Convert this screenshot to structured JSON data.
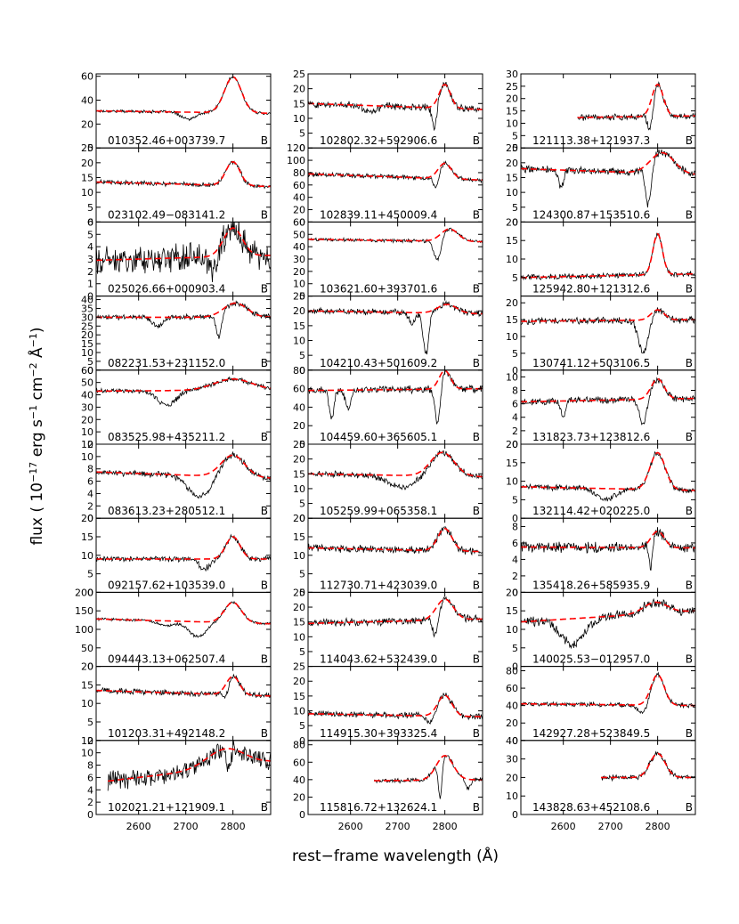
{
  "figure": {
    "ylabel": "flux ( 10<sup>−17</sup> erg s<sup>−1</sup> cm<sup>−2</sup> Å<sup>−1</sup>)",
    "ylabel_parts": [
      "flux ( 10",
      "−17",
      " erg s",
      "−1",
      " cm",
      "−2",
      " Å",
      "−1",
      ")"
    ],
    "xlabel": "rest−frame wavelength (Å)",
    "x_ticks": [
      2600,
      2700,
      2800
    ],
    "grid": false,
    "data_color": "#000000",
    "model_color": "#ff0000"
  },
  "chart_data": {
    "type": "line",
    "layout": "10x3 panel grid (column-major)",
    "xlim": [
      2510,
      2880
    ],
    "xlabel": "rest−frame wavelength (Å)",
    "series_names": [
      "observed spectrum",
      "model fit"
    ],
    "panels": [
      {
        "label": "010352.46+003739.7",
        "flag": "B",
        "ylim": [
          0,
          62
        ],
        "yticks": [
          0,
          20,
          40,
          60
        ],
        "xstart": 2510,
        "cont": [
          31,
          29
        ],
        "emission": {
          "center": 2800,
          "amp": 30,
          "width": 18
        },
        "absorption": [
          {
            "center": 2706,
            "depth": 6,
            "width": 15
          }
        ],
        "noise": 1.0
      },
      {
        "label": "023102.49−083141.2",
        "flag": "B",
        "ylim": [
          0,
          25
        ],
        "yticks": [
          0,
          5,
          10,
          15,
          20,
          25
        ],
        "xstart": 2510,
        "cont": [
          13.5,
          12
        ],
        "emission": {
          "center": 2800,
          "amp": 8,
          "width": 15
        },
        "absorption": [],
        "noise": 0.6
      },
      {
        "label": "025026.66+000903.4",
        "flag": "B",
        "ylim": [
          0,
          6
        ],
        "yticks": [
          0,
          1,
          2,
          3,
          4,
          5,
          6
        ],
        "xstart": 2510,
        "cont": [
          2.9,
          3.3
        ],
        "emission": {
          "center": 2800,
          "amp": 2.3,
          "width": 20
        },
        "absorption": [
          {
            "center": 2760,
            "depth": 1.5,
            "width": 8
          }
        ],
        "noise": 0.9
      },
      {
        "label": "082231.53+231152.0",
        "flag": "B",
        "ylim": [
          0,
          42
        ],
        "yticks": [
          0,
          5,
          10,
          15,
          20,
          25,
          30,
          35,
          40
        ],
        "xstart": 2510,
        "cont": [
          30,
          30
        ],
        "emission": {
          "center": 2805,
          "amp": 8,
          "width": 25
        },
        "absorption": [
          {
            "center": 2770,
            "depth": 14,
            "width": 6
          },
          {
            "center": 2640,
            "depth": 5,
            "width": 12
          }
        ],
        "noise": 1.2
      },
      {
        "label": "083525.98+435211.2",
        "flag": "B",
        "ylim": [
          0,
          60
        ],
        "yticks": [
          0,
          10,
          20,
          30,
          40,
          50,
          60
        ],
        "xstart": 2510,
        "cont": [
          43,
          44
        ],
        "emission": {
          "center": 2800,
          "amp": 9,
          "width": 40
        },
        "absorption": [
          {
            "center": 2660,
            "depth": 12,
            "width": 20
          }
        ],
        "noise": 1.5
      },
      {
        "label": "083613.23+280512.1",
        "flag": "B",
        "ylim": [
          0,
          12
        ],
        "yticks": [
          0,
          2,
          4,
          6,
          8,
          10,
          12
        ],
        "xstart": 2510,
        "cont": [
          7.5,
          6.5
        ],
        "emission": {
          "center": 2800,
          "amp": 3.5,
          "width": 25
        },
        "absorption": [
          {
            "center": 2730,
            "depth": 3.5,
            "width": 25
          }
        ],
        "noise": 0.4
      },
      {
        "label": "092157.62+103539.0",
        "flag": "B",
        "ylim": [
          0,
          20
        ],
        "yticks": [
          0,
          5,
          10,
          15,
          20
        ],
        "xstart": 2510,
        "cont": [
          9,
          9
        ],
        "emission": {
          "center": 2800,
          "amp": 6,
          "width": 15
        },
        "absorption": [
          {
            "center": 2740,
            "depth": 2.5,
            "width": 12
          }
        ],
        "noise": 0.6
      },
      {
        "label": "094443.13+062507.4",
        "flag": "B",
        "ylim": [
          0,
          200
        ],
        "yticks": [
          0,
          50,
          100,
          150,
          200
        ],
        "xstart": 2510,
        "cont": [
          128,
          115
        ],
        "emission": {
          "center": 2800,
          "amp": 55,
          "width": 18
        },
        "absorption": [
          {
            "center": 2725,
            "depth": 40,
            "width": 18
          },
          {
            "center": 2660,
            "depth": 12,
            "width": 18
          }
        ],
        "noise": 3
      },
      {
        "label": "101203.31+492148.2",
        "flag": "B",
        "ylim": [
          0,
          20
        ],
        "yticks": [
          0,
          5,
          10,
          15,
          20
        ],
        "xstart": 2510,
        "cont": [
          13.5,
          12
        ],
        "emission": {
          "center": 2800,
          "amp": 5,
          "width": 14
        },
        "absorption": [
          {
            "center": 2785,
            "depth": 3,
            "width": 6
          }
        ],
        "noise": 0.6
      },
      {
        "label": "102021.21+121909.1",
        "flag": "B",
        "ylim": [
          0,
          12
        ],
        "yticks": [
          0,
          2,
          4,
          6,
          8,
          10,
          12
        ],
        "xstart": 2535,
        "cont": [
          5.2,
          8.5
        ],
        "emission": {
          "center": 2785,
          "amp": 3,
          "width": 40
        },
        "absorption": [
          {
            "center": 2790,
            "depth": 3.5,
            "width": 5
          }
        ],
        "noise": 1.2
      },
      {
        "label": "102802.32+592906.6",
        "flag": "B",
        "ylim": [
          0,
          25
        ],
        "yticks": [
          0,
          5,
          10,
          15,
          20,
          25
        ],
        "xstart": 2510,
        "cont": [
          15,
          13
        ],
        "emission": {
          "center": 2800,
          "amp": 8,
          "width": 12
        },
        "absorption": [
          {
            "center": 2778,
            "depth": 8,
            "width": 5
          },
          {
            "center": 2640,
            "depth": 2,
            "width": 15
          }
        ],
        "noise": 1.0
      },
      {
        "label": "102839.11+450009.4",
        "flag": "B",
        "ylim": [
          0,
          120
        ],
        "yticks": [
          0,
          20,
          40,
          60,
          80,
          100,
          120
        ],
        "xstart": 2510,
        "cont": [
          78,
          68
        ],
        "emission": {
          "center": 2800,
          "amp": 25,
          "width": 14
        },
        "absorption": [
          {
            "center": 2782,
            "depth": 25,
            "width": 6
          }
        ],
        "noise": 3
      },
      {
        "label": "103621.60+393701.6",
        "flag": "B",
        "ylim": [
          0,
          60
        ],
        "yticks": [
          0,
          10,
          20,
          30,
          40,
          50,
          60
        ],
        "xstart": 2510,
        "cont": [
          46,
          44
        ],
        "emission": {
          "center": 2810,
          "amp": 10,
          "width": 18
        },
        "absorption": [
          {
            "center": 2785,
            "depth": 18,
            "width": 8
          }
        ],
        "noise": 1.2
      },
      {
        "label": "104210.43+501609.2",
        "flag": "B",
        "ylim": [
          0,
          25
        ],
        "yticks": [
          0,
          5,
          10,
          15,
          20,
          25
        ],
        "xstart": 2510,
        "cont": [
          20,
          19
        ],
        "emission": {
          "center": 2805,
          "amp": 3,
          "width": 20
        },
        "absorption": [
          {
            "center": 2760,
            "depth": 14,
            "width": 6
          },
          {
            "center": 2730,
            "depth": 4,
            "width": 6
          }
        ],
        "noise": 0.8
      },
      {
        "label": "104459.60+365605.1",
        "flag": "B",
        "ylim": [
          0,
          80
        ],
        "yticks": [
          0,
          20,
          40,
          60,
          80
        ],
        "xstart": 2510,
        "cont": [
          58,
          60
        ],
        "emission": {
          "center": 2800,
          "amp": 20,
          "width": 12
        },
        "absorption": [
          {
            "center": 2785,
            "depth": 45,
            "width": 6
          },
          {
            "center": 2560,
            "depth": 30,
            "width": 5
          },
          {
            "center": 2595,
            "depth": 20,
            "width": 6
          }
        ],
        "noise": 3
      },
      {
        "label": "105259.99+065358.1",
        "flag": "B",
        "ylim": [
          0,
          25
        ],
        "yticks": [
          0,
          5,
          10,
          15,
          20,
          25
        ],
        "xstart": 2510,
        "cont": [
          15,
          14
        ],
        "emission": {
          "center": 2795,
          "amp": 8,
          "width": 25
        },
        "absorption": [
          {
            "center": 2710,
            "depth": 4,
            "width": 30
          }
        ],
        "noise": 0.8
      },
      {
        "label": "112730.71+423039.0",
        "flag": "B",
        "ylim": [
          0,
          20
        ],
        "yticks": [
          0,
          5,
          10,
          15,
          20
        ],
        "xstart": 2510,
        "cont": [
          12,
          11
        ],
        "emission": {
          "center": 2800,
          "amp": 6,
          "width": 15
        },
        "absorption": [],
        "noise": 0.8
      },
      {
        "label": "114043.62+532439.0",
        "flag": "B",
        "ylim": [
          0,
          25
        ],
        "yticks": [
          5,
          10,
          15,
          20,
          25
        ],
        "xstart": 2510,
        "cont": [
          14.5,
          16
        ],
        "emission": {
          "center": 2800,
          "amp": 7,
          "width": 18
        },
        "absorption": [
          {
            "center": 2780,
            "depth": 8,
            "width": 7
          }
        ],
        "noise": 1.0
      },
      {
        "label": "114915.30+393325.4",
        "flag": "B",
        "ylim": [
          0,
          25
        ],
        "yticks": [
          0,
          5,
          10,
          15,
          20,
          25
        ],
        "xstart": 2510,
        "cont": [
          9,
          8
        ],
        "emission": {
          "center": 2800,
          "amp": 7,
          "width": 15
        },
        "absorption": [
          {
            "center": 2770,
            "depth": 3,
            "width": 8
          }
        ],
        "noise": 0.8
      },
      {
        "label": "115816.72+132624.1",
        "flag": "B",
        "ylim": [
          0,
          85
        ],
        "yticks": [
          0,
          20,
          40,
          60,
          80
        ],
        "xstart": 2650,
        "cont": [
          38,
          40
        ],
        "emission": {
          "center": 2800,
          "amp": 28,
          "width": 18
        },
        "absorption": [
          {
            "center": 2790,
            "depth": 45,
            "width": 4
          },
          {
            "center": 2850,
            "depth": 10,
            "width": 5
          }
        ],
        "noise": 2
      },
      {
        "label": "121113.38+121937.3",
        "flag": "B",
        "ylim": [
          0,
          30
        ],
        "yticks": [
          0,
          5,
          10,
          15,
          20,
          25,
          30
        ],
        "xstart": 2630,
        "cont": [
          12,
          13
        ],
        "emission": {
          "center": 2800,
          "amp": 13,
          "width": 12
        },
        "absorption": [
          {
            "center": 2785,
            "depth": 10,
            "width": 6
          }
        ],
        "noise": 1.0
      },
      {
        "label": "124300.87+153510.6",
        "flag": "B",
        "ylim": [
          0,
          25
        ],
        "yticks": [
          0,
          5,
          10,
          15,
          20,
          25
        ],
        "xstart": 2510,
        "cont": [
          18,
          16
        ],
        "emission": {
          "center": 2810,
          "amp": 7,
          "width": 25
        },
        "absorption": [
          {
            "center": 2780,
            "depth": 14,
            "width": 6
          },
          {
            "center": 2595,
            "depth": 6,
            "width": 5
          }
        ],
        "noise": 1.0
      },
      {
        "label": "125942.80+121312.6",
        "flag": "B",
        "ylim": [
          0,
          20
        ],
        "yticks": [
          5,
          10,
          15,
          20
        ],
        "xstart": 2510,
        "cont": [
          5,
          6
        ],
        "emission": {
          "center": 2800,
          "amp": 11,
          "width": 10
        },
        "absorption": [],
        "noise": 0.6
      },
      {
        "label": "130741.12+503106.5",
        "flag": "B",
        "ylim": [
          0,
          22
        ],
        "yticks": [
          0,
          5,
          10,
          15,
          20
        ],
        "xstart": 2510,
        "cont": [
          14.5,
          15
        ],
        "emission": {
          "center": 2800,
          "amp": 3,
          "width": 14
        },
        "absorption": [
          {
            "center": 2770,
            "depth": 10,
            "width": 10
          }
        ],
        "noise": 0.8
      },
      {
        "label": "131823.73+123812.6",
        "flag": "B",
        "ylim": [
          0,
          11
        ],
        "yticks": [
          0,
          2,
          4,
          6,
          8,
          10
        ],
        "xstart": 2510,
        "cont": [
          6.3,
          6.8
        ],
        "emission": {
          "center": 2800,
          "amp": 3,
          "width": 14
        },
        "absorption": [
          {
            "center": 2770,
            "depth": 4,
            "width": 8
          },
          {
            "center": 2600,
            "depth": 2.5,
            "width": 5
          }
        ],
        "noise": 0.4
      },
      {
        "label": "132114.42+020225.0",
        "flag": "B",
        "ylim": [
          0,
          20
        ],
        "yticks": [
          0,
          5,
          10,
          15,
          20
        ],
        "xstart": 2510,
        "cont": [
          8.5,
          7.5
        ],
        "emission": {
          "center": 2800,
          "amp": 10,
          "width": 16
        },
        "absorption": [
          {
            "center": 2690,
            "depth": 3,
            "width": 20
          }
        ],
        "noise": 0.6
      },
      {
        "label": "135418.26+585935.9",
        "flag": "B",
        "ylim": [
          0,
          9
        ],
        "yticks": [
          0,
          2,
          4,
          6,
          8
        ],
        "xstart": 2510,
        "cont": [
          5.5,
          5.4
        ],
        "emission": {
          "center": 2800,
          "amp": 2,
          "width": 14
        },
        "absorption": [
          {
            "center": 2785,
            "depth": 3.5,
            "width": 4
          }
        ],
        "noise": 0.5
      },
      {
        "label": "140025.53−012957.0",
        "flag": "B",
        "ylim": [
          0,
          20
        ],
        "yticks": [
          0,
          5,
          10,
          15,
          20
        ],
        "xstart": 2510,
        "cont": [
          12,
          15
        ],
        "emission": {
          "center": 2795,
          "amp": 3,
          "width": 25
        },
        "absorption": [
          {
            "center": 2620,
            "depth": 7,
            "width": 25
          }
        ],
        "noise": 1.0
      },
      {
        "label": "142927.28+523849.5",
        "flag": "B",
        "ylim": [
          0,
          85
        ],
        "yticks": [
          0,
          20,
          40,
          60,
          80
        ],
        "xstart": 2510,
        "cont": [
          42,
          40
        ],
        "emission": {
          "center": 2800,
          "amp": 35,
          "width": 14
        },
        "absorption": [
          {
            "center": 2770,
            "depth": 12,
            "width": 10
          }
        ],
        "noise": 2
      },
      {
        "label": "143828.63+452108.6",
        "flag": "B",
        "ylim": [
          0,
          40
        ],
        "yticks": [
          0,
          10,
          20,
          30,
          40
        ],
        "xstart": 2680,
        "cont": [
          20,
          20
        ],
        "emission": {
          "center": 2800,
          "amp": 13,
          "width": 16
        },
        "absorption": [],
        "noise": 1.2
      }
    ]
  }
}
